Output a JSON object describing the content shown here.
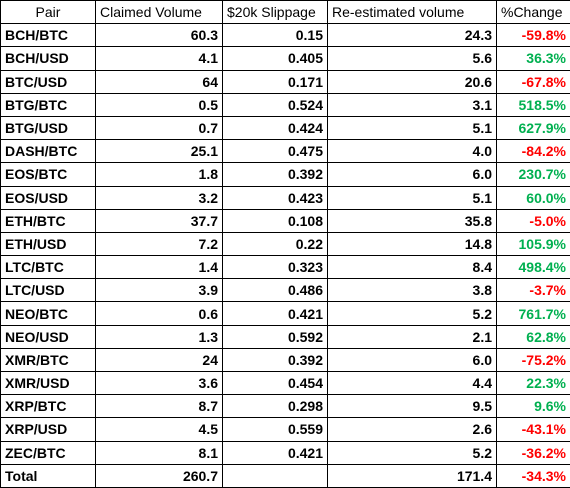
{
  "table": {
    "header": [
      "Pair",
      "Claimed Volume",
      "$20k Slippage",
      "Re-estimated volume",
      "%Change"
    ],
    "rows": [
      [
        "BCH/BTC",
        "60.3",
        "0.15",
        "24.3",
        "-59.8%"
      ],
      [
        "BCH/USD",
        "4.1",
        "0.405",
        "5.6",
        "36.3%"
      ],
      [
        "BTC/USD",
        "64",
        "0.171",
        "20.6",
        "-67.8%"
      ],
      [
        "BTG/BTC",
        "0.5",
        "0.524",
        "3.1",
        "518.5%"
      ],
      [
        "BTG/USD",
        "0.7",
        "0.424",
        "5.1",
        "627.9%"
      ],
      [
        "DASH/BTC",
        "25.1",
        "0.475",
        "4.0",
        "-84.2%"
      ],
      [
        "EOS/BTC",
        "1.8",
        "0.392",
        "6.0",
        "230.7%"
      ],
      [
        "EOS/USD",
        "3.2",
        "0.423",
        "5.1",
        "60.0%"
      ],
      [
        "ETH/BTC",
        "37.7",
        "0.108",
        "35.8",
        "-5.0%"
      ],
      [
        "ETH/USD",
        "7.2",
        "0.22",
        "14.8",
        "105.9%"
      ],
      [
        "LTC/BTC",
        "1.4",
        "0.323",
        "8.4",
        "498.4%"
      ],
      [
        "LTC/USD",
        "3.9",
        "0.486",
        "3.8",
        "-3.7%"
      ],
      [
        "NEO/BTC",
        "0.6",
        "0.421",
        "5.2",
        "761.7%"
      ],
      [
        "NEO/USD",
        "1.3",
        "0.592",
        "2.1",
        "62.8%"
      ],
      [
        "XMR/BTC",
        "24",
        "0.392",
        "6.0",
        "-75.2%"
      ],
      [
        "XMR/USD",
        "3.6",
        "0.454",
        "4.4",
        "22.3%"
      ],
      [
        "XRP/BTC",
        "8.7",
        "0.298",
        "9.5",
        "9.6%"
      ],
      [
        "XRP/USD",
        "4.5",
        "0.559",
        "2.6",
        "-43.1%"
      ],
      [
        "ZEC/BTC",
        "8.1",
        "0.421",
        "5.2",
        "-36.2%"
      ]
    ],
    "total": {
      "label": "Total",
      "claimed": "260.7",
      "reestimated": "171.4",
      "change": "-34.3%"
    }
  }
}
